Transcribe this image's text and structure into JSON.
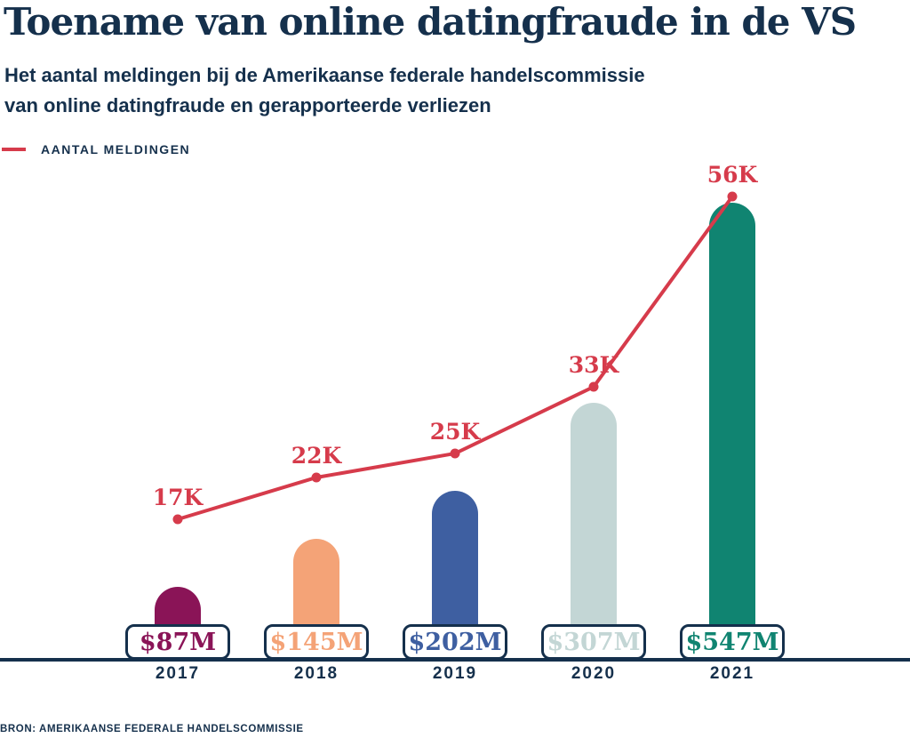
{
  "header": {
    "title": "Toename van online datingfraude in de VS",
    "subtitle_line1": "Het aantal meldingen bij de Amerikaanse federale handelscommissie",
    "subtitle_line2": "van online datingfraude en gerapporteerde verliezen"
  },
  "legend": {
    "label": "AANTAL MELDINGEN"
  },
  "source": "BRON: AMERIKAANSE FEDERALE HANDELSCOMMISSIE",
  "colors": {
    "navy": "#15304C",
    "background": "#FFFFFF"
  },
  "chart_data": {
    "type": "combo",
    "title": "Toename van online datingfraude in de VS",
    "categories": [
      "2017",
      "2018",
      "2019",
      "2020",
      "2021"
    ],
    "series": [
      {
        "name": "Gerapporteerde verliezen",
        "type": "bar",
        "values": [
          87,
          145,
          202,
          307,
          547
        ],
        "unit": "million USD",
        "labels": [
          "$87M",
          "$145M",
          "$202M",
          "$307M",
          "$547M"
        ],
        "colors": [
          "#8A1457",
          "#F4A377",
          "#3E5FA1",
          "#C3D6D5",
          "#108471"
        ]
      },
      {
        "name": "Aantal meldingen",
        "type": "line",
        "values": [
          17000,
          22000,
          25000,
          33000,
          56000
        ],
        "unit": "reports",
        "labels": [
          "17K",
          "22K",
          "25K",
          "33K",
          "56K"
        ],
        "color": "#D63B4B"
      }
    ],
    "ylim_bars_million_usd": [
      0,
      580
    ],
    "ylim_line_reports": [
      0,
      60000
    ],
    "grid": false,
    "legend_position": "top-left",
    "xlabel": "",
    "ylabel": ""
  }
}
